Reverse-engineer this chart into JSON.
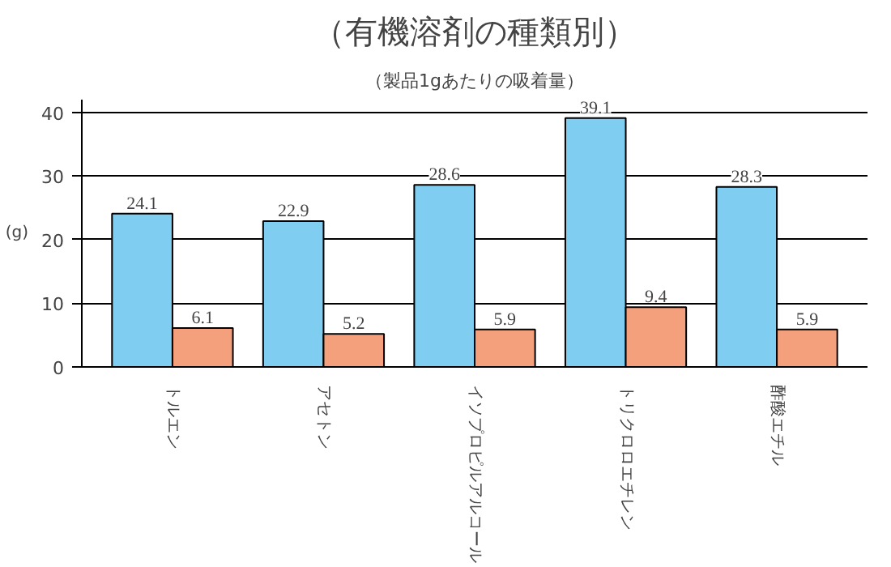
{
  "chart_data": {
    "type": "bar",
    "title": "（有機溶剤の種類別）",
    "subtitle": "（製品1gあたりの吸着量）",
    "ylabel": "(g)",
    "categories": [
      "トルエン",
      "アセトン",
      "イソプロピルアルコール",
      "トリクロロエチレン",
      "酢酸エチル"
    ],
    "series": [
      {
        "color": "#7fcdf0",
        "values": [
          24.1,
          22.9,
          28.6,
          39.1,
          28.3
        ]
      },
      {
        "color": "#f4a07c",
        "values": [
          6.1,
          5.2,
          5.9,
          9.4,
          5.9
        ]
      }
    ],
    "ylim": [
      0,
      42
    ],
    "yticks": [
      0,
      10,
      20,
      30,
      40
    ],
    "grid": "y",
    "data_labels": true
  }
}
